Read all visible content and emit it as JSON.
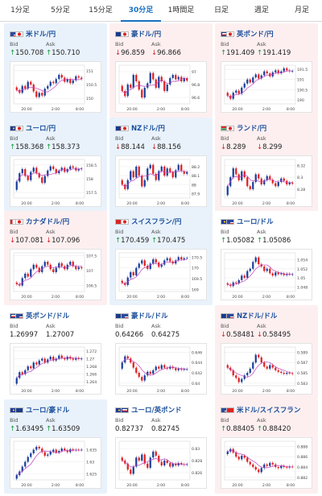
{
  "tabs": [
    {
      "label": "1分足",
      "active": false
    },
    {
      "label": "5分足",
      "active": false
    },
    {
      "label": "15分足",
      "active": false
    },
    {
      "label": "30分足",
      "active": true
    },
    {
      "label": "1時間足",
      "active": false
    },
    {
      "label": "日足",
      "active": false
    },
    {
      "label": "週足",
      "active": false
    },
    {
      "label": "月足",
      "active": false
    }
  ],
  "labels": {
    "bid": "Bid",
    "ask": "Ask"
  },
  "colors": {
    "up_bg": "#e9f2fb",
    "down_bg": "#fdeff0",
    "accent": "#1a6fbf",
    "candle_up": "#1a3f9b",
    "candle_down": "#e02020",
    "ma": "#c040c0"
  },
  "cards": [
    {
      "pair": "米ドル/円",
      "flags": [
        "us-flag",
        "jp-flag"
      ],
      "trend": "up",
      "bid": "150.708",
      "ask": "150.710",
      "dir": "up",
      "ylabels": [
        "151",
        "150.5",
        "150"
      ],
      "ymax": 151.2,
      "ymin": 149.8,
      "xlabels": [
        "20:00",
        "2:00",
        "8:00"
      ],
      "close": [
        150.3,
        150.2,
        150.45,
        150.35,
        150.6,
        150.5,
        150.25,
        150.05,
        150.2,
        150.1,
        150.35,
        150.45,
        150.6,
        150.55,
        150.7,
        150.85,
        150.75,
        150.6,
        150.7,
        150.55,
        150.65,
        150.8,
        150.75,
        150.7
      ]
    },
    {
      "pair": "豪ドル/円",
      "flags": [
        "au-flag",
        "jp-flag"
      ],
      "trend": "down",
      "bid": "96.859",
      "ask": "96.866",
      "dir": "down",
      "ylabels": [
        "97",
        "96.8",
        "96.6"
      ],
      "ymax": 97.1,
      "ymin": 96.5,
      "xlabels": [
        "20:00",
        "2:00",
        "8:00"
      ],
      "close": [
        96.7,
        96.62,
        96.8,
        96.75,
        96.95,
        96.85,
        96.72,
        96.6,
        96.75,
        96.82,
        96.98,
        96.88,
        96.75,
        96.92,
        96.85,
        96.7,
        96.8,
        96.9,
        96.95,
        96.88,
        96.92,
        96.85,
        96.9,
        96.86
      ]
    },
    {
      "pair": "英ポンド/円",
      "flags": [
        "gb-flag",
        "jp-flag"
      ],
      "trend": "down",
      "bid": "191.409",
      "ask": "191.419",
      "dir": "up",
      "ylabels": [
        "191.5",
        "191",
        "190.5",
        "190"
      ],
      "ymax": 191.7,
      "ymin": 189.8,
      "xlabels": [
        "20:00",
        "2:00",
        "8:00"
      ],
      "close": [
        190.2,
        190.05,
        190.35,
        190.45,
        190.3,
        190.6,
        190.8,
        191.0,
        190.85,
        191.1,
        191.25,
        191.05,
        191.2,
        191.4,
        191.3,
        191.15,
        191.35,
        191.45,
        191.3,
        191.4,
        191.55,
        191.45,
        191.4,
        191.41
      ]
    },
    {
      "pair": "ユーロ/円",
      "flags": [
        "eu-flag",
        "jp-flag"
      ],
      "trend": "up",
      "bid": "158.368",
      "ask": "158.373",
      "dir": "up",
      "ylabels": [
        "158.5",
        "158",
        "157.5"
      ],
      "ymax": 158.7,
      "ymin": 157.3,
      "xlabels": [
        "20:00",
        "2:00",
        "8:00"
      ],
      "close": [
        157.9,
        158.2,
        158.35,
        158.1,
        157.95,
        158.25,
        158.4,
        158.2,
        158.05,
        157.85,
        158.1,
        158.3,
        158.45,
        158.35,
        158.2,
        158.3,
        158.4,
        158.25,
        158.35,
        158.45,
        158.4,
        158.3,
        158.35,
        158.37
      ]
    },
    {
      "pair": "NZドル/円",
      "flags": [
        "nz-flag",
        "jp-flag"
      ],
      "trend": "up",
      "bid": "88.144",
      "ask": "88.156",
      "dir": "down",
      "ylabels": [
        "88.2",
        "88.1",
        "88",
        "87.9"
      ],
      "ymax": 88.28,
      "ymin": 87.85,
      "xlabels": [
        "20:00",
        "2:00",
        "8:00"
      ],
      "close": [
        88.0,
        87.95,
        88.05,
        88.15,
        88.08,
        88.2,
        88.1,
        87.98,
        88.05,
        88.18,
        88.22,
        88.12,
        88.05,
        88.15,
        88.2,
        88.1,
        88.18,
        88.14,
        88.08,
        88.16,
        88.22,
        88.15,
        88.12,
        88.14
      ]
    },
    {
      "pair": "ランド/円",
      "flags": [
        "za-flag",
        "jp-flag"
      ],
      "trend": "down",
      "bid": "8.289",
      "ask": "8.299",
      "dir": "down",
      "ylabels": [
        "8.32",
        "8.3",
        "8.28"
      ],
      "ymax": 8.33,
      "ymin": 8.265,
      "xlabels": [
        "20:00",
        "2:00",
        "8:00"
      ],
      "close": [
        8.285,
        8.3,
        8.315,
        8.305,
        8.295,
        8.31,
        8.3,
        8.285,
        8.28,
        8.292,
        8.305,
        8.298,
        8.288,
        8.295,
        8.302,
        8.296,
        8.29,
        8.285,
        8.292,
        8.298,
        8.294,
        8.288,
        8.291,
        8.289
      ]
    },
    {
      "pair": "カナダドル/円",
      "flags": [
        "ca-flag",
        "jp-flag"
      ],
      "trend": "down",
      "bid": "107.081",
      "ask": "107.096",
      "dir": "down",
      "ylabels": [
        "107.5",
        "107",
        "106.5"
      ],
      "ymax": 107.6,
      "ymin": 106.3,
      "xlabels": [
        "20:00",
        "2:00",
        "8:00"
      ],
      "close": [
        106.55,
        106.5,
        106.75,
        106.9,
        106.8,
        107.05,
        107.2,
        107.1,
        106.95,
        107.15,
        107.3,
        107.2,
        107.05,
        106.95,
        107.1,
        107.25,
        107.15,
        107.05,
        107.2,
        107.3,
        107.15,
        107.05,
        107.12,
        107.08
      ]
    },
    {
      "pair": "スイスフラン/円",
      "flags": [
        "ch-flag",
        "jp-flag"
      ],
      "trend": "up",
      "bid": "170.459",
      "ask": "170.475",
      "dir": "up",
      "ylabels": [
        "170.5",
        "170",
        "169.5",
        "169"
      ],
      "ymax": 170.7,
      "ymin": 168.9,
      "xlabels": [
        "20:00",
        "2:00",
        "8:00"
      ],
      "close": [
        169.3,
        169.2,
        169.55,
        169.8,
        169.65,
        170.0,
        170.2,
        170.35,
        170.1,
        169.95,
        170.2,
        170.4,
        170.25,
        170.05,
        170.15,
        170.35,
        170.45,
        170.3,
        170.2,
        170.35,
        170.5,
        170.4,
        170.45,
        170.46
      ]
    },
    {
      "pair": "ユーロ/ドル",
      "flags": [
        "eu-flag",
        "us-flag"
      ],
      "trend": "neutral",
      "bid": "1.05082",
      "ask": "1.05086",
      "dir": "up",
      "ylabels": [
        "1.054",
        "1.052",
        "1.05",
        "1.048"
      ],
      "ymax": 1.0555,
      "ymin": 1.047,
      "xlabels": [
        "20:00",
        "2:00",
        "8:00"
      ],
      "close": [
        1.0485,
        1.0482,
        1.049,
        1.0488,
        1.0495,
        1.0505,
        1.05,
        1.0515,
        1.052,
        1.0535,
        1.0545,
        1.053,
        1.0525,
        1.0515,
        1.052,
        1.051,
        1.0505,
        1.0512,
        1.0508,
        1.051,
        1.0506,
        1.0509,
        1.0507,
        1.0508
      ]
    },
    {
      "pair": "英ポンド/ドル",
      "flags": [
        "gb-flag",
        "us-flag"
      ],
      "trend": "neutral",
      "bid": "1.26997",
      "ask": "1.27007",
      "dir": "none",
      "ylabels": [
        "1.272",
        "1.27",
        "1.268",
        "1.266",
        "1.264"
      ],
      "ymax": 1.273,
      "ymin": 1.263,
      "xlabels": [
        "20:00",
        "2:00",
        "8:00"
      ],
      "close": [
        1.265,
        1.2665,
        1.266,
        1.267,
        1.268,
        1.2675,
        1.269,
        1.2685,
        1.2695,
        1.27,
        1.269,
        1.2698,
        1.2705,
        1.2695,
        1.27,
        1.2708,
        1.2702,
        1.2698,
        1.2705,
        1.27,
        1.2697,
        1.2702,
        1.2699,
        1.27
      ]
    },
    {
      "pair": "豪ドル/ドル",
      "flags": [
        "au-flag",
        "us-flag"
      ],
      "trend": "neutral",
      "bid": "0.64266",
      "ask": "0.64275",
      "dir": "none",
      "ylabels": [
        "0.646",
        "0.644",
        "0.642",
        "0.64"
      ],
      "ymax": 0.647,
      "ymin": 0.6395,
      "xlabels": [
        "20:00",
        "2:00",
        "8:00"
      ],
      "close": [
        0.644,
        0.6452,
        0.6448,
        0.644,
        0.643,
        0.642,
        0.6412,
        0.6405,
        0.6415,
        0.6422,
        0.6418,
        0.6425,
        0.6432,
        0.6428,
        0.6435,
        0.643,
        0.6428,
        0.6432,
        0.6429,
        0.6425,
        0.6428,
        0.6426,
        0.6427,
        0.6427
      ]
    },
    {
      "pair": "NZドル/ドル",
      "flags": [
        "nz-flag",
        "us-flag"
      ],
      "trend": "down",
      "bid": "0.58481",
      "ask": "0.58495",
      "dir": "down",
      "ylabels": [
        "0.589",
        "0.587",
        "0.585",
        "0.583"
      ],
      "ymax": 0.59,
      "ymin": 0.5825,
      "xlabels": [
        "20:00",
        "2:00",
        "8:00"
      ],
      "close": [
        0.586,
        0.5855,
        0.5845,
        0.584,
        0.5832,
        0.5838,
        0.5845,
        0.585,
        0.5858,
        0.587,
        0.5885,
        0.588,
        0.587,
        0.5862,
        0.5858,
        0.5865,
        0.586,
        0.5855,
        0.5852,
        0.585,
        0.5848,
        0.585,
        0.5849,
        0.5848
      ]
    },
    {
      "pair": "ユーロ/豪ドル",
      "flags": [
        "eu-flag",
        "au-flag"
      ],
      "trend": "up",
      "bid": "1.63495",
      "ask": "1.63509",
      "dir": "up",
      "ylabels": [
        "1.635",
        "1.63",
        "1.625"
      ],
      "ymax": 1.6385,
      "ymin": 1.6225,
      "xlabels": [
        "20:00",
        "2:00",
        "8:00"
      ],
      "close": [
        1.6245,
        1.626,
        1.628,
        1.63,
        1.632,
        1.6335,
        1.635,
        1.6362,
        1.6355,
        1.634,
        1.6325,
        1.633,
        1.6342,
        1.635,
        1.6338,
        1.6345,
        1.6355,
        1.6348,
        1.634,
        1.6352,
        1.6348,
        1.635,
        1.6349,
        1.635
      ]
    },
    {
      "pair": "ユーロ/英ポンド",
      "flags": [
        "eu-flag",
        "gb-flag"
      ],
      "trend": "neutral",
      "bid": "0.82737",
      "ask": "0.82745",
      "dir": "none",
      "ylabels": [
        "0.83",
        "0.828",
        "0.826"
      ],
      "ymax": 0.8312,
      "ymin": 0.8248,
      "xlabels": [
        "20:00",
        "2:00",
        "8:00"
      ],
      "close": [
        0.828,
        0.8275,
        0.8265,
        0.8258,
        0.827,
        0.8285,
        0.828,
        0.829,
        0.8275,
        0.8268,
        0.8285,
        0.8295,
        0.8288,
        0.8278,
        0.8272,
        0.828,
        0.8276,
        0.827,
        0.8275,
        0.8272,
        0.8276,
        0.8274,
        0.8273,
        0.8274
      ]
    },
    {
      "pair": "米ドル/スイスフラン",
      "flags": [
        "us-flag",
        "ch-flag"
      ],
      "trend": "down",
      "bid": "0.88405",
      "ask": "0.88420",
      "dir": "up",
      "ylabels": [
        "0.888",
        "0.886",
        "0.884",
        "0.882"
      ],
      "ymax": 0.889,
      "ymin": 0.8815,
      "xlabels": [
        "20:00",
        "2:00",
        "8:00"
      ],
      "close": [
        0.887,
        0.8875,
        0.8868,
        0.886,
        0.8855,
        0.8862,
        0.8858,
        0.885,
        0.8845,
        0.884,
        0.8835,
        0.883,
        0.8838,
        0.8845,
        0.8842,
        0.8848,
        0.8845,
        0.884,
        0.8838,
        0.8842,
        0.884,
        0.8839,
        0.8841,
        0.884
      ]
    }
  ]
}
